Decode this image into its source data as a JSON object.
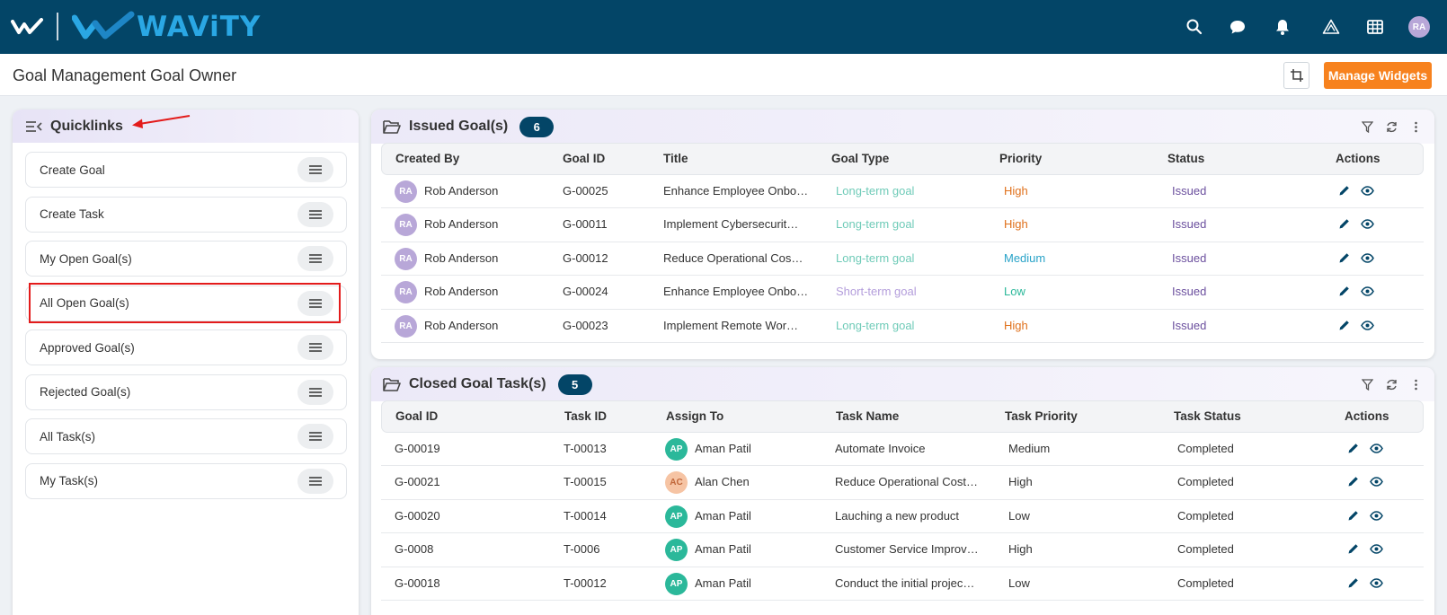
{
  "app": {
    "brand": "WAViTY",
    "user_initials": "RA"
  },
  "page": {
    "title": "Goal Management Goal Owner",
    "manage_widgets_label": "Manage Widgets"
  },
  "topbar_icons": [
    "search-icon",
    "chat-icon",
    "bell-icon",
    "warning-triangle-icon",
    "grid-icon"
  ],
  "quicklinks": {
    "title": "Quicklinks",
    "highlighted": "All Open Goal(s)",
    "items": [
      {
        "label": "Create Goal"
      },
      {
        "label": "Create Task"
      },
      {
        "label": "My Open Goal(s)"
      },
      {
        "label": "All Open Goal(s)"
      },
      {
        "label": "Approved Goal(s)"
      },
      {
        "label": "Rejected Goal(s)"
      },
      {
        "label": "All Task(s)"
      },
      {
        "label": "My Task(s)"
      }
    ]
  },
  "issued_goals": {
    "title": "Issued Goal(s)",
    "count": "6",
    "columns": [
      "Created By",
      "Goal ID",
      "Title",
      "Goal Type",
      "Priority",
      "Status",
      "Actions"
    ],
    "rows": [
      {
        "initials": "RA",
        "created_by": "Rob Anderson",
        "goal_id": "G-00025",
        "title": "Enhance Employee Onbo…",
        "goal_type": "Long-term goal",
        "priority": "High",
        "status": "Issued"
      },
      {
        "initials": "RA",
        "created_by": "Rob Anderson",
        "goal_id": "G-00011",
        "title": "Implement Cybersecurit…",
        "goal_type": "Long-term goal",
        "priority": "High",
        "status": "Issued"
      },
      {
        "initials": "RA",
        "created_by": "Rob Anderson",
        "goal_id": "G-00012",
        "title": "Reduce Operational Cos…",
        "goal_type": "Long-term goal",
        "priority": "Medium",
        "status": "Issued"
      },
      {
        "initials": "RA",
        "created_by": "Rob Anderson",
        "goal_id": "G-00024",
        "title": "Enhance Employee Onbo…",
        "goal_type": "Short-term goal",
        "priority": "Low",
        "status": "Issued"
      },
      {
        "initials": "RA",
        "created_by": "Rob Anderson",
        "goal_id": "G-00023",
        "title": "Implement Remote Wor…",
        "goal_type": "Long-term goal",
        "priority": "High",
        "status": "Issued"
      }
    ]
  },
  "closed_tasks": {
    "title": "Closed Goal Task(s)",
    "count": "5",
    "columns": [
      "Goal ID",
      "Task ID",
      "Assign To",
      "Task Name",
      "Task Priority",
      "Task Status",
      "Actions"
    ],
    "rows": [
      {
        "goal_id": "G-00019",
        "task_id": "T-00013",
        "initials": "AP",
        "assign_to": "Aman Patil",
        "task_name": "Automate Invoice",
        "priority": "Medium",
        "status": "Completed"
      },
      {
        "goal_id": "G-00021",
        "task_id": "T-00015",
        "initials": "AC",
        "assign_to": "Alan Chen",
        "task_name": "Reduce Operational Cost…",
        "priority": "High",
        "status": "Completed"
      },
      {
        "goal_id": "G-00020",
        "task_id": "T-00014",
        "initials": "AP",
        "assign_to": "Aman Patil",
        "task_name": "Lauching a new product",
        "priority": "Low",
        "status": "Completed"
      },
      {
        "goal_id": "G-0008",
        "task_id": "T-0006",
        "initials": "AP",
        "assign_to": "Aman Patil",
        "task_name": "Customer Service Improv…",
        "priority": "High",
        "status": "Completed"
      },
      {
        "goal_id": "G-00018",
        "task_id": "T-00012",
        "initials": "AP",
        "assign_to": "Aman Patil",
        "task_name": "Conduct the initial projec…",
        "priority": "Low",
        "status": "Completed"
      }
    ]
  },
  "colors": {
    "topbar": "#034567",
    "accent_orange": "#f7821e",
    "goal_type_long": "#6fcbb8",
    "goal_type_short": "#b39ddb",
    "priority_high": "#e0711c",
    "priority_medium": "#29a3c8",
    "priority_low": "#2bb89a",
    "status_issued": "#6b4f9e",
    "avatar_ra": "#b8a7d8",
    "avatar_ap": "#2bb89a",
    "avatar_ac": "#f6c4a4"
  }
}
